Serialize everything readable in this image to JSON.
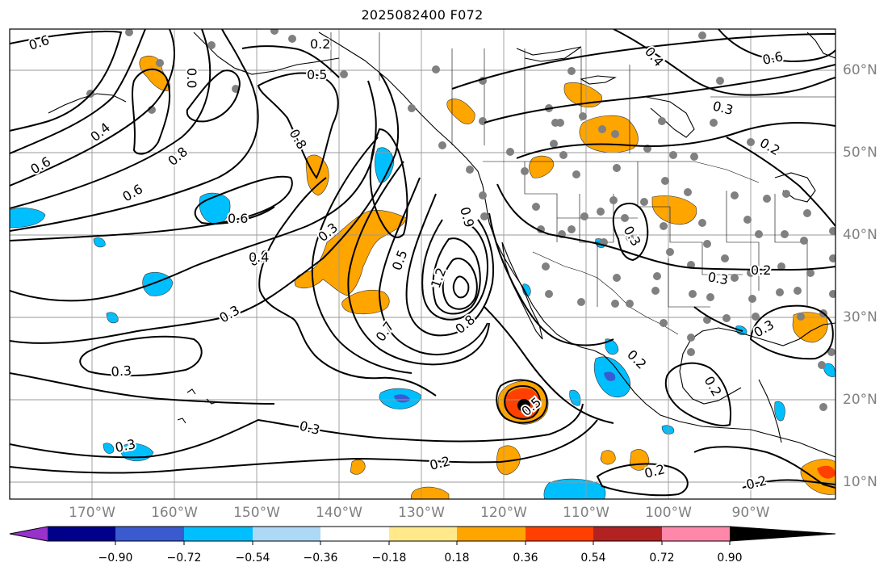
{
  "title": "2025082400 F072",
  "lat_labels": [
    "60°N",
    "50°N",
    "40°N",
    "30°N",
    "20°N",
    "10°N"
  ],
  "lon_labels": [
    "170°W",
    "160°W",
    "150°W",
    "140°W",
    "130°W",
    "120°W",
    "110°W",
    "100°W",
    "90°W"
  ],
  "contour_labels": [
    "0.6",
    "0.2",
    "0.4",
    "0.6",
    "0.5",
    "0.3",
    "0.2",
    "0.4",
    "0.6",
    "0.0",
    "0.8",
    "0.6",
    "0.6",
    "0.8",
    "0.3",
    "0.3",
    "0.6",
    "0.4",
    "0.5",
    "0.7",
    "1.2",
    "0.8",
    "0.9",
    "0.3",
    "0.2",
    "0.3",
    "0.2",
    "0.3",
    "0.3",
    "0.3",
    "0.2",
    "0.2",
    "0.3",
    "0.2",
    "0.2",
    "0.5"
  ],
  "colorbar": {
    "ticks": [
      "−0.90",
      "−0.72",
      "−0.54",
      "−0.36",
      "−0.18",
      "0.18",
      "0.36",
      "0.54",
      "0.72",
      "0.90"
    ],
    "colors": [
      "#9932cc",
      "#00008b",
      "#3a5bd0",
      "#00bfff",
      "#add8f6",
      "#ffffff",
      "#ffe98a",
      "#ffa500",
      "#ff4000",
      "#b22222",
      "#ff88aa"
    ]
  }
}
